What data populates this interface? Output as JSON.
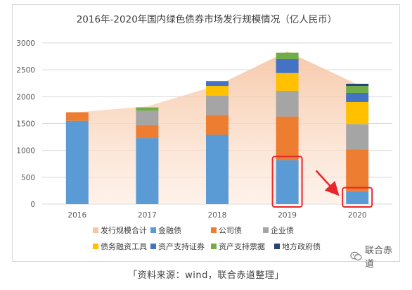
{
  "chart_data": {
    "type": "bar",
    "stacked": true,
    "title": "2016年-2020年国内绿色债券市场发行规模情况（亿人民币）",
    "categories": [
      "2016",
      "2017",
      "2018",
      "2019",
      "2020"
    ],
    "ylim": [
      0,
      3000
    ],
    "yticks": [
      "0",
      "500",
      "1000",
      "1500",
      "2000",
      "2500",
      "3000"
    ],
    "grid": true,
    "legend_position": "bottom",
    "area_series": {
      "name": "发行规模合计",
      "values": [
        1710,
        1820,
        2210,
        2840,
        2230
      ],
      "color": "#f6c7a6"
    },
    "series": [
      {
        "name": "金融债",
        "color": "#5b9bd5",
        "values": [
          1550,
          1230,
          1290,
          820,
          240
        ]
      },
      {
        "name": "公司债",
        "color": "#ed7d31",
        "values": [
          160,
          240,
          370,
          810,
          780
        ]
      },
      {
        "name": "企业债",
        "color": "#a5a5a5",
        "values": [
          0,
          270,
          360,
          480,
          470
        ]
      },
      {
        "name": "债务融资工具",
        "color": "#ffc000",
        "values": [
          0,
          0,
          180,
          330,
          410
        ]
      },
      {
        "name": "资产支持证券",
        "color": "#4472c4",
        "values": [
          0,
          0,
          90,
          260,
          170
        ]
      },
      {
        "name": "资产支持票据",
        "color": "#70ad47",
        "values": [
          0,
          60,
          0,
          120,
          130
        ]
      },
      {
        "name": "地方政府债",
        "color": "#264478",
        "values": [
          0,
          0,
          0,
          0,
          40
        ]
      }
    ],
    "highlights": [
      {
        "category": "2019",
        "series": "金融债"
      },
      {
        "category": "2020",
        "series": "金融债"
      }
    ],
    "highlight_color": "#e8262b"
  },
  "watermark": {
    "text": "联合赤道"
  },
  "source": "「资料来源：wind，联合赤道整理」"
}
